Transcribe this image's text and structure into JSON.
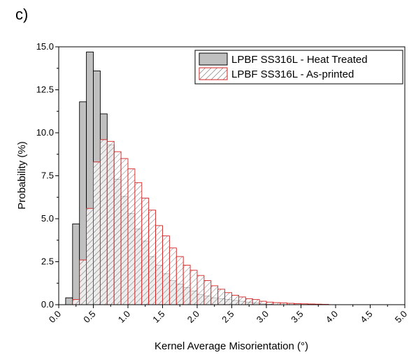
{
  "panel_label": "c)",
  "chart_data": {
    "type": "bar",
    "title": "",
    "xlabel": "Kernel Average Misorientation (°)",
    "ylabel": "Probability (%)",
    "xlim": [
      0,
      5
    ],
    "ylim": [
      0,
      15
    ],
    "xticks": [
      "0.0",
      "0.5",
      "1.0",
      "1.5",
      "2.0",
      "2.5",
      "3.0",
      "3.5",
      "4.0",
      "4.5",
      "5.0"
    ],
    "yticks": [
      "0.0",
      "2.5",
      "5.0",
      "7.5",
      "10.0",
      "12.5",
      "15.0"
    ],
    "bin_width": 0.1,
    "grid": false,
    "legend_position": "top-right",
    "series": [
      {
        "name": "LPBF SS316L - Heat Treated",
        "style": "solid-gray",
        "fill": "#c0c0c0",
        "edge": "#000000",
        "bin_starts": [
          0.1,
          0.2,
          0.3,
          0.4,
          0.5,
          0.6,
          0.7,
          0.8,
          0.9,
          1.0,
          1.1,
          1.2,
          1.3,
          1.4,
          1.5,
          1.6,
          1.7,
          1.8,
          1.9,
          2.0,
          2.1,
          2.2,
          2.3,
          2.4,
          2.5,
          2.6,
          2.7,
          2.8,
          2.9,
          3.0
        ],
        "values": [
          0.4,
          4.7,
          11.8,
          14.7,
          13.6,
          11.1,
          9.3,
          7.3,
          6.3,
          5.3,
          4.4,
          3.7,
          2.8,
          2.3,
          1.8,
          1.4,
          1.2,
          1.0,
          0.8,
          0.6,
          0.5,
          0.4,
          0.35,
          0.3,
          0.25,
          0.2,
          0.15,
          0.1,
          0.05,
          0.03
        ]
      },
      {
        "name": "LPBF SS316L - As-printed",
        "style": "hatched-red",
        "fill": "#ffffff",
        "edge": "#d42020",
        "bin_starts": [
          0.1,
          0.2,
          0.3,
          0.4,
          0.5,
          0.6,
          0.7,
          0.8,
          0.9,
          1.0,
          1.1,
          1.2,
          1.3,
          1.4,
          1.5,
          1.6,
          1.7,
          1.8,
          1.9,
          2.0,
          2.1,
          2.2,
          2.3,
          2.4,
          2.5,
          2.6,
          2.7,
          2.8,
          2.9,
          3.0,
          3.1,
          3.2,
          3.3,
          3.4,
          3.5,
          3.6,
          3.7,
          3.8
        ],
        "values": [
          0.0,
          0.3,
          2.6,
          5.6,
          8.3,
          9.6,
          9.5,
          8.9,
          8.5,
          7.9,
          7.1,
          6.2,
          5.5,
          4.6,
          4.0,
          3.3,
          2.8,
          2.3,
          2.0,
          1.7,
          1.4,
          1.1,
          0.9,
          0.7,
          0.55,
          0.45,
          0.35,
          0.3,
          0.2,
          0.15,
          0.12,
          0.1,
          0.08,
          0.06,
          0.05,
          0.04,
          0.03,
          0.02
        ]
      }
    ]
  }
}
